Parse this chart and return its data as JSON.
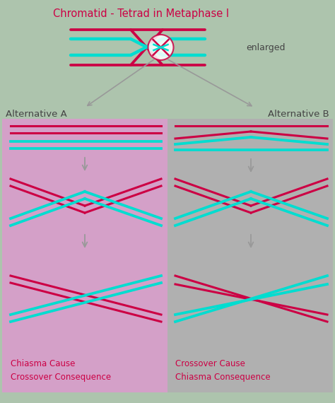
{
  "title": "Chromatid - Tetrad in Metaphase I",
  "title_color": "#cc0044",
  "bg_color": "#adc4ad",
  "alt_a_bg": "#d4a0c8",
  "alt_b_bg": "#b0b0b0",
  "red_color": "#cc0044",
  "cyan_color": "#00ddd0",
  "text_color": "#444444",
  "arrow_color": "#999999",
  "alt_a_label": "Alternative A",
  "alt_b_label": "Alternative B",
  "enlarged_label": "enlarged",
  "bottom_a_text": "Chiasma Cause\nCrossover Consequence",
  "bottom_b_text": "Crossover Cause\nChiasma Consequence"
}
